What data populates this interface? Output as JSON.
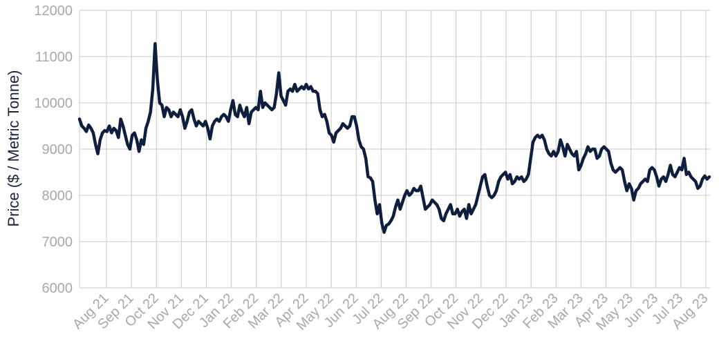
{
  "chart_data": {
    "type": "line",
    "ylabel": "Price ($ / Metric Tonne)",
    "xlabel": "",
    "title": "",
    "ylim": [
      6000,
      12000
    ],
    "yticks": [
      6000,
      7000,
      8000,
      9000,
      10000,
      11000,
      12000
    ],
    "xtick_labels": [
      "Aug 21",
      "Sep 21",
      "Oct 22",
      "Nov 21",
      "Dec 21",
      "Jan 22",
      "Feb 22",
      "Mar 22",
      "Apr 22",
      "May 22",
      "Jun 22",
      "Jul 22",
      "Aug 22",
      "Sep 22",
      "Oct 22",
      "Nov 22",
      "Dec 22",
      "Jan 23",
      "Feb 23",
      "Mar 23",
      "Apr 23",
      "May 23",
      "Jun 23",
      "Jul 23",
      "Aug 23"
    ],
    "grid": true,
    "line_color": "#0f1e3d",
    "series": [
      {
        "values": [
          9650,
          9500,
          9450,
          9380,
          9520,
          9450,
          9350,
          9100,
          8900,
          9200,
          9350,
          9400,
          9380,
          9500,
          9350,
          9450,
          9400,
          9250,
          9650,
          9500,
          9300,
          9100,
          9000,
          9300,
          9350,
          9200,
          8950,
          9200,
          9100,
          9450,
          9600,
          9800,
          10300,
          11280,
          10500,
          10000,
          9950,
          9700,
          9900,
          9850,
          9700,
          9800,
          9750,
          9700,
          9850,
          9700,
          9450,
          9600,
          9800,
          9850,
          9650,
          9500,
          9600,
          9550,
          9500,
          9600,
          9450,
          9220,
          9500,
          9600,
          9650,
          9600,
          9700,
          9750,
          9700,
          9600,
          9850,
          10050,
          9750,
          9700,
          9950,
          9800,
          9700,
          9900,
          9550,
          9800,
          9850,
          9900,
          9850,
          10250,
          9900,
          10000,
          9950,
          9900,
          9850,
          9900,
          10200,
          10650,
          10150,
          10050,
          9950,
          10250,
          10300,
          10250,
          10400,
          10250,
          10300,
          10350,
          10300,
          10400,
          10300,
          10350,
          10250,
          10250,
          10200,
          9850,
          9700,
          9750,
          9600,
          9350,
          9300,
          9150,
          9350,
          9400,
          9450,
          9550,
          9500,
          9450,
          9500,
          9700,
          9700,
          9500,
          9200,
          9050,
          9000,
          8800,
          8400,
          8380,
          8300,
          7900,
          7600,
          7800,
          7400,
          7200,
          7350,
          7380,
          7450,
          7550,
          7750,
          7900,
          7700,
          7850,
          8000,
          8100,
          8000,
          8050,
          8150,
          8100,
          8100,
          8200,
          7950,
          7700,
          7750,
          7800,
          7900,
          7850,
          7800,
          7700,
          7500,
          7450,
          7600,
          7700,
          7800,
          7600,
          7600,
          7700,
          7550,
          7650,
          7700,
          7500,
          7800,
          7600,
          7700,
          7800,
          8000,
          8200,
          8400,
          8450,
          8200,
          8000,
          7950,
          8000,
          8100,
          8300,
          8400,
          8450,
          8500,
          8350,
          8450,
          8250,
          8300,
          8400,
          8350,
          8400,
          8300,
          8350,
          8450,
          8800,
          9150,
          9250,
          9300,
          9250,
          9300,
          9200,
          9000,
          8900,
          8850,
          8950,
          8850,
          8950,
          9200,
          9050,
          8850,
          9100,
          9000,
          8900,
          8850,
          8950,
          8550,
          8650,
          8800,
          8900,
          9050,
          8950,
          9000,
          9000,
          8800,
          8850,
          9000,
          9050,
          9000,
          8950,
          8700,
          8550,
          8500,
          8550,
          8600,
          8550,
          8300,
          8100,
          8250,
          8150,
          7900,
          8100,
          8150,
          8250,
          8300,
          8350,
          8300,
          8550,
          8600,
          8550,
          8400,
          8200,
          8350,
          8400,
          8300,
          8450,
          8650,
          8450,
          8400,
          8500,
          8600,
          8550,
          8800,
          8450,
          8500,
          8400,
          8350,
          8300,
          8150,
          8200,
          8350,
          8420,
          8350,
          8400
        ]
      }
    ]
  }
}
